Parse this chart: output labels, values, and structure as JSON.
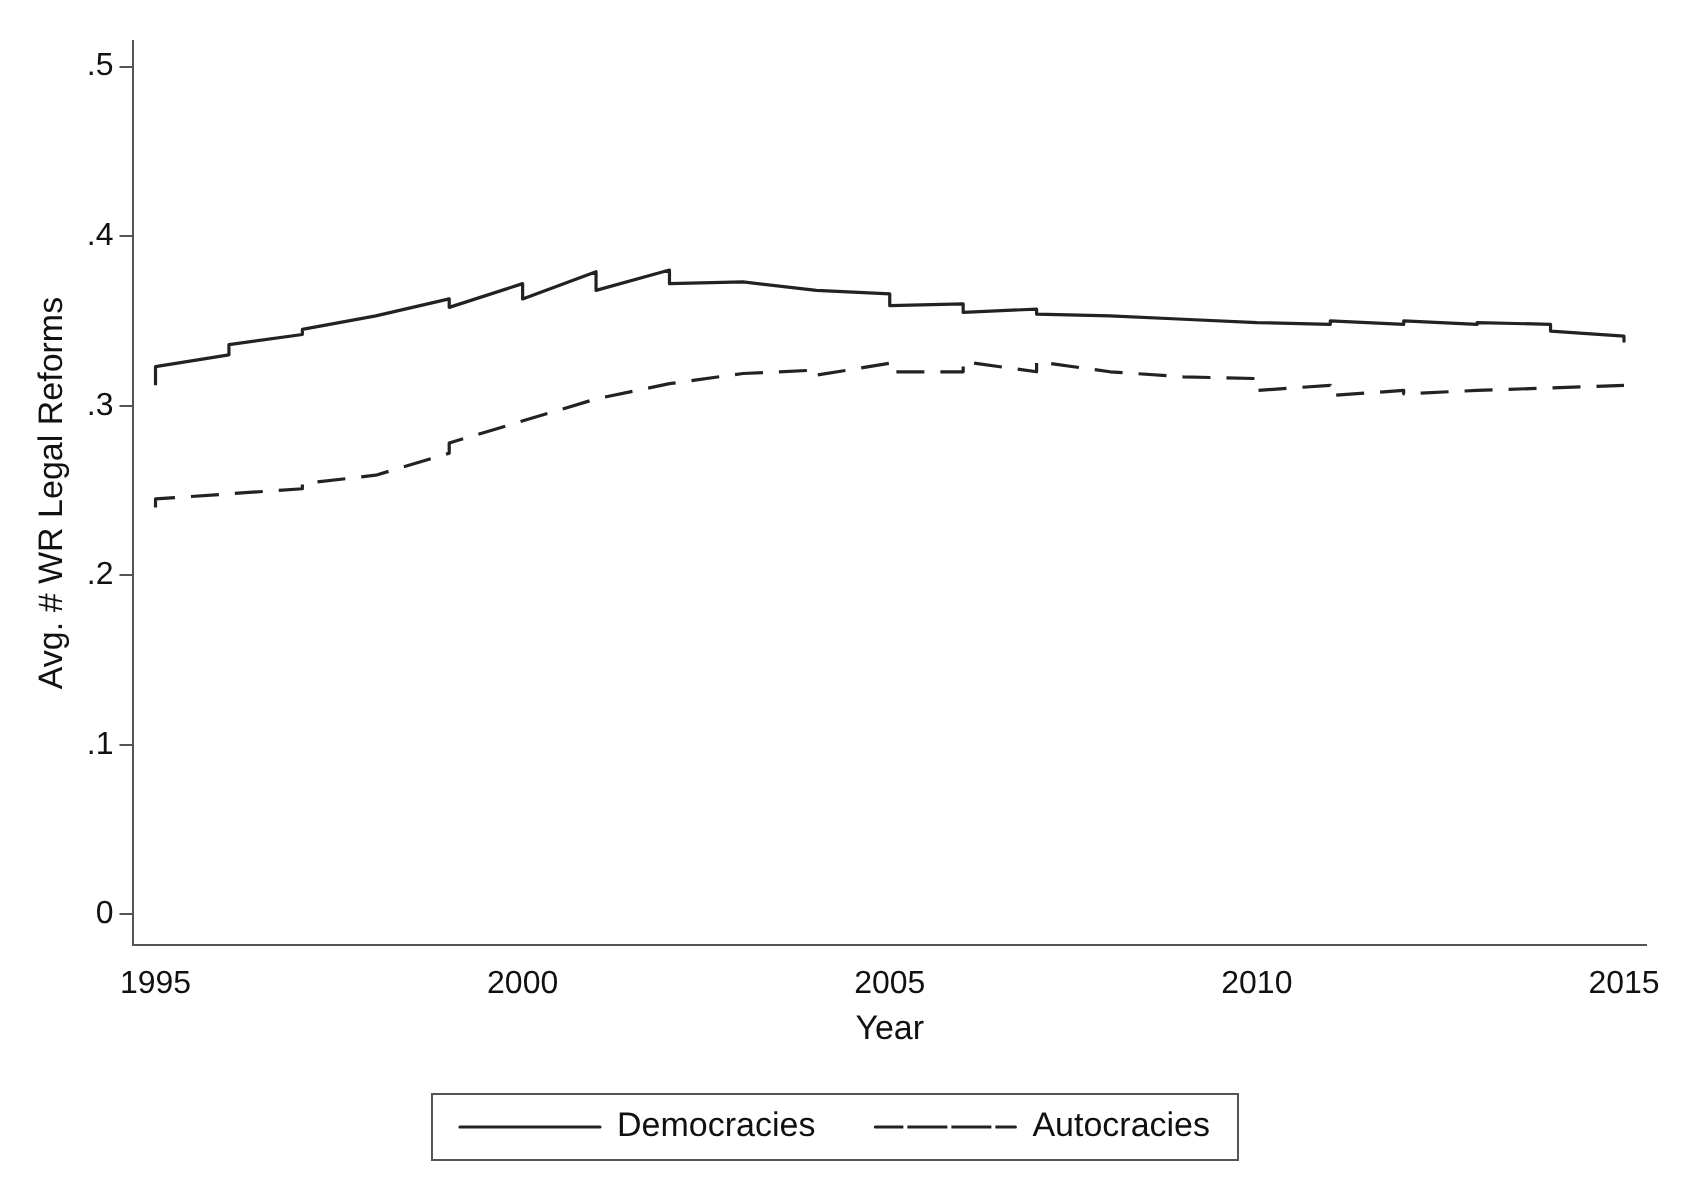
{
  "chart_data": {
    "type": "line",
    "xlabel": "Year",
    "ylabel": "Avg. # WR Legal Reforms",
    "xlim": [
      1994.7,
      2015.3
    ],
    "xticks": [
      1995,
      2000,
      2005,
      2010,
      2015
    ],
    "ylim": [
      -0.018,
      0.515
    ],
    "yticks": [
      0,
      {
        "value": 0.1,
        "label": ".1"
      },
      {
        "value": 0.2,
        "label": ".2"
      },
      {
        "value": 0.3,
        "label": ".3"
      },
      {
        "value": 0.4,
        "label": ".4"
      },
      {
        "value": 0.5,
        "label": ".5"
      }
    ],
    "grid": false,
    "legend": "bottom",
    "marker": "none",
    "series": [
      {
        "name": "Democracies",
        "color": "#222222",
        "line_style": "solid",
        "x": [
          1995,
          1995,
          1996,
          1996,
          1997,
          1997,
          1998,
          1999,
          1999,
          2000,
          2000,
          2001,
          2001,
          2002,
          2002,
          2003,
          2004,
          2005,
          2005,
          2006,
          2006,
          2007,
          2007,
          2008,
          2009,
          2010,
          2011,
          2011,
          2012,
          2012,
          2013,
          2013,
          2014,
          2014,
          2015,
          2015
        ],
        "values": [
          0.312,
          0.323,
          0.33,
          0.336,
          0.342,
          0.345,
          0.353,
          0.363,
          0.358,
          0.372,
          0.363,
          0.379,
          0.368,
          0.38,
          0.372,
          0.373,
          0.368,
          0.366,
          0.359,
          0.36,
          0.355,
          0.357,
          0.354,
          0.353,
          0.351,
          0.349,
          0.348,
          0.35,
          0.348,
          0.35,
          0.348,
          0.349,
          0.348,
          0.344,
          0.341,
          0.338
        ]
      },
      {
        "name": "Autocracies",
        "color": "#222222",
        "line_style": "dashed",
        "x": [
          1995,
          1995,
          1997,
          1997,
          1998,
          1999,
          1999,
          2001,
          2002,
          2003,
          2004,
          2004,
          2005,
          2005,
          2006,
          2006,
          2007,
          2007,
          2008,
          2009,
          2010,
          2010,
          2011,
          2011,
          2012,
          2012,
          2013,
          2015
        ],
        "values": [
          0.24,
          0.245,
          0.251,
          0.254,
          0.259,
          0.272,
          0.278,
          0.304,
          0.313,
          0.319,
          0.321,
          0.318,
          0.325,
          0.32,
          0.32,
          0.326,
          0.32,
          0.326,
          0.32,
          0.317,
          0.316,
          0.309,
          0.312,
          0.306,
          0.309,
          0.307,
          0.309,
          0.312
        ]
      }
    ]
  }
}
